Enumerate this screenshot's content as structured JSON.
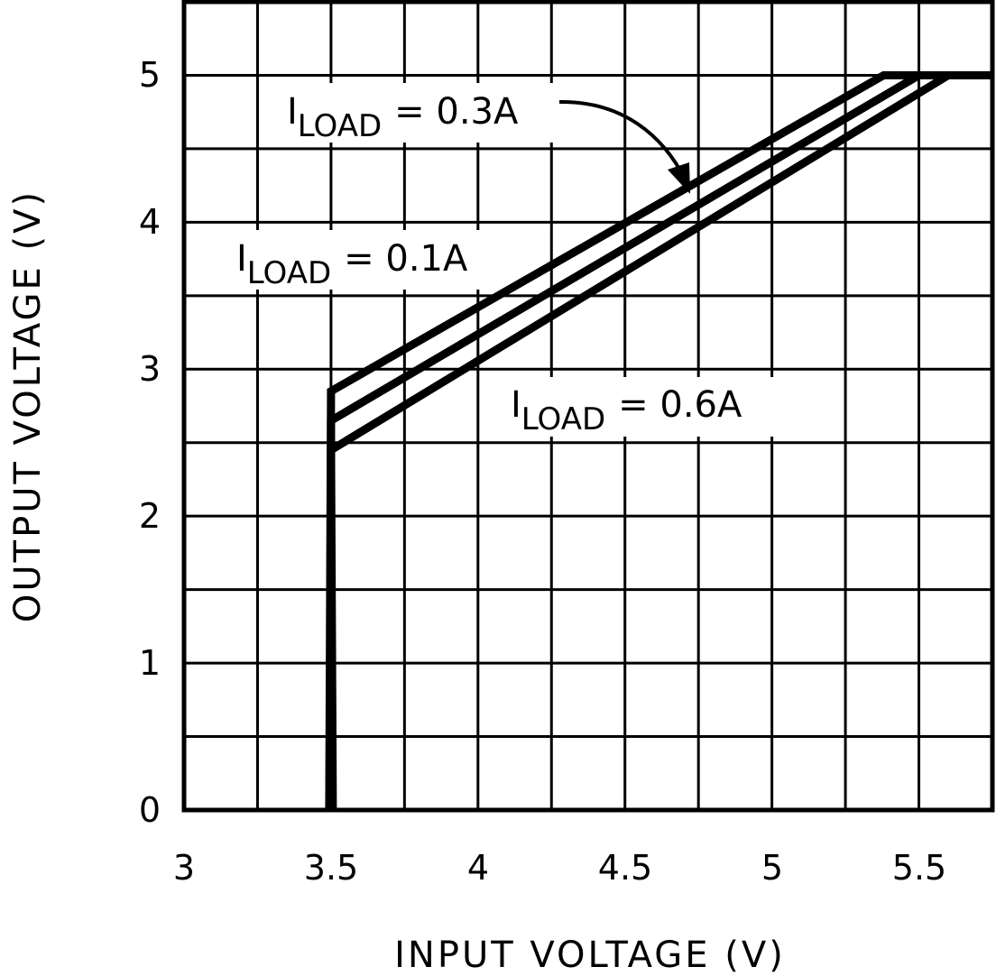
{
  "chart_data": {
    "type": "line",
    "title": "",
    "xlabel": "INPUT VOLTAGE (V)",
    "ylabel": "OUTPUT VOLTAGE (V)",
    "xlim": [
      3,
      5.75
    ],
    "ylim": [
      0,
      5.5
    ],
    "x_ticks": [
      "3",
      "3.5",
      "4",
      "4.5",
      "5",
      "5.5"
    ],
    "y_ticks": [
      "0",
      "1",
      "2",
      "3",
      "4",
      "5"
    ],
    "grid": true,
    "grid_x_step": 0.25,
    "grid_y_step": 0.5,
    "legend_position": "inline annotations",
    "series": [
      {
        "name": "ILOAD = 0.1A",
        "points": [
          [
            3.5,
            0
          ],
          [
            3.5,
            2.85
          ],
          [
            5.38,
            5.0
          ],
          [
            5.75,
            5.0
          ]
        ]
      },
      {
        "name": "ILOAD = 0.3A",
        "points": [
          [
            3.5,
            0
          ],
          [
            3.5,
            2.65
          ],
          [
            5.5,
            5.0
          ],
          [
            5.75,
            5.0
          ]
        ]
      },
      {
        "name": "ILOAD = 0.6A",
        "points": [
          [
            3.5,
            0
          ],
          [
            3.5,
            2.45
          ],
          [
            5.6,
            5.0
          ],
          [
            5.75,
            5.0
          ]
        ]
      }
    ],
    "annotations": [
      {
        "label_main": "I",
        "label_sub": "LOAD",
        "label_value": "= 0.3A",
        "arrow_to_series": "ILOAD = 0.3A"
      },
      {
        "label_main": "I",
        "label_sub": "LOAD",
        "label_value": "= 0.1A"
      },
      {
        "label_main": "I",
        "label_sub": "LOAD",
        "label_value": "= 0.6A"
      }
    ]
  },
  "colors": {
    "line": "#000000",
    "grid": "#000000",
    "background": "#ffffff"
  }
}
